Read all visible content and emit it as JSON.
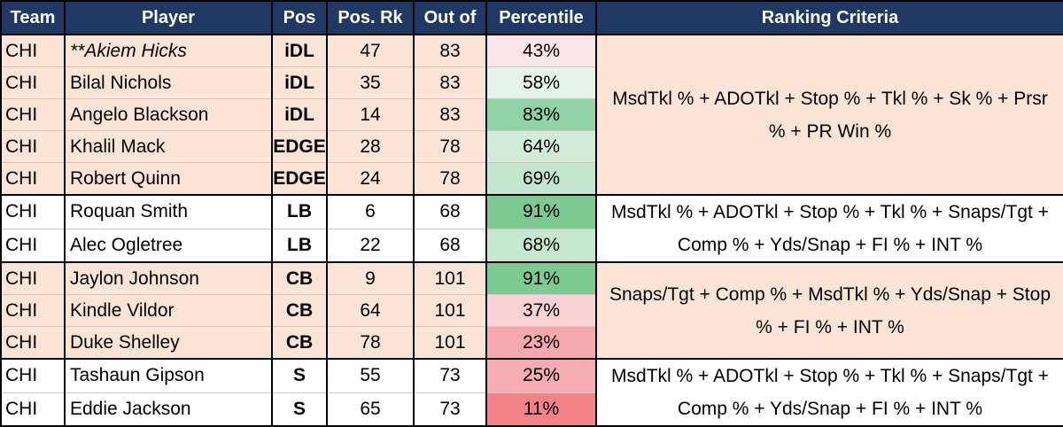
{
  "colors": {
    "header_bg": "#1f3864",
    "header_text": "#ffffff",
    "row_shaded": "#fbe4d5",
    "row_white": "#ffffff"
  },
  "table": {
    "headers": [
      "Team",
      "Player",
      "Pos",
      "Pos. Rk",
      "Out of",
      "Percentile",
      "Ranking Criteria"
    ],
    "groups": [
      {
        "shaded": true,
        "criteria": "MsdTkl % + ADOTkl + Stop % + Tkl % + Sk % + Prsr % + PR Win %",
        "rows": [
          {
            "team": "CHI",
            "player": "**Akiem Hicks",
            "italic": true,
            "pos": "iDL",
            "rank": "47",
            "out_of": "83",
            "percentile": "43%",
            "pct_color": "#fbe5e8"
          },
          {
            "team": "CHI",
            "player": "Bilal Nichols",
            "pos": "iDL",
            "rank": "35",
            "out_of": "83",
            "percentile": "58%",
            "pct_color": "#e6f3ea"
          },
          {
            "team": "CHI",
            "player": "Angelo Blackson",
            "pos": "iDL",
            "rank": "14",
            "out_of": "83",
            "percentile": "83%",
            "pct_color": "#8fd2a3"
          },
          {
            "team": "CHI",
            "player": "Khalil Mack",
            "pos": "EDGE",
            "rank": "28",
            "out_of": "78",
            "percentile": "64%",
            "pct_color": "#d2ecd9"
          },
          {
            "team": "CHI",
            "player": "Robert Quinn",
            "pos": "EDGE",
            "rank": "24",
            "out_of": "78",
            "percentile": "69%",
            "pct_color": "#c4e6cd"
          }
        ]
      },
      {
        "shaded": false,
        "criteria": "MsdTkl % + ADOTkl + Stop % + Tkl % + Snaps/Tgt + Comp % + Yds/Snap + FI % + INT %",
        "rows": [
          {
            "team": "CHI",
            "player": "Roquan Smith",
            "pos": "LB",
            "rank": "6",
            "out_of": "68",
            "percentile": "91%",
            "pct_color": "#7cca92"
          },
          {
            "team": "CHI",
            "player": "Alec Ogletree",
            "pos": "LB",
            "rank": "22",
            "out_of": "68",
            "percentile": "68%",
            "pct_color": "#c7e8d0"
          }
        ]
      },
      {
        "shaded": true,
        "criteria": "Snaps/Tgt + Comp % + MsdTkl % + Yds/Snap + Stop % + FI % + INT %",
        "rows": [
          {
            "team": "CHI",
            "player": "Jaylon Johnson",
            "pos": "CB",
            "rank": "9",
            "out_of": "101",
            "percentile": "91%",
            "pct_color": "#7cca92"
          },
          {
            "team": "CHI",
            "player": "Kindle Vildor",
            "pos": "CB",
            "rank": "64",
            "out_of": "101",
            "percentile": "37%",
            "pct_color": "#f9d2d6"
          },
          {
            "team": "CHI",
            "player": "Duke Shelley",
            "pos": "CB",
            "rank": "78",
            "out_of": "101",
            "percentile": "23%",
            "pct_color": "#f5a9ae"
          }
        ]
      },
      {
        "shaded": false,
        "criteria": "MsdTkl % + ADOTkl + Stop % + Tkl % + Snaps/Tgt + Comp % + Yds/Snap + FI % + INT %",
        "rows": [
          {
            "team": "CHI",
            "player": "Tashaun Gipson",
            "pos": "S",
            "rank": "55",
            "out_of": "73",
            "percentile": "25%",
            "pct_color": "#f5adb2"
          },
          {
            "team": "CHI",
            "player": "Eddie Jackson",
            "pos": "S",
            "rank": "65",
            "out_of": "73",
            "percentile": "11%",
            "pct_color": "#f38288"
          }
        ]
      }
    ]
  }
}
